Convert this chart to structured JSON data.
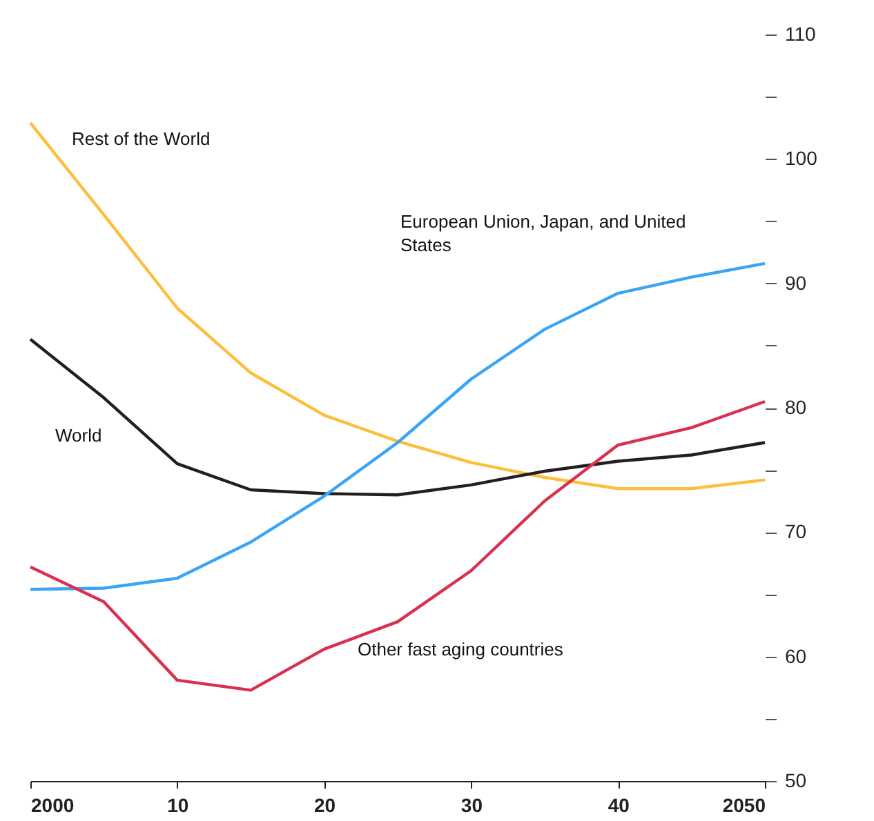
{
  "chart_data": {
    "type": "line",
    "x": [
      2000,
      2005,
      2010,
      2015,
      2020,
      2025,
      2030,
      2035,
      2040,
      2045,
      2050
    ],
    "series": [
      {
        "name": "Rest of the World",
        "color": "#fbbf3c",
        "values": [
          102.9,
          95.5,
          88.0,
          82.8,
          79.4,
          77.3,
          75.6,
          74.4,
          73.5,
          73.5,
          74.2
        ]
      },
      {
        "name": "World",
        "color": "#231f20",
        "values": [
          85.5,
          80.8,
          75.5,
          73.4,
          73.1,
          73.0,
          73.8,
          74.9,
          75.7,
          76.2,
          77.2
        ]
      },
      {
        "name": "European Union, Japan, and United States",
        "color": "#3aa5f5",
        "values": [
          65.4,
          65.5,
          66.3,
          69.2,
          72.9,
          77.2,
          82.3,
          86.3,
          89.2,
          90.5,
          91.6
        ]
      },
      {
        "name": "Other fast aging countries",
        "color": "#d9304f",
        "values": [
          67.2,
          64.4,
          58.1,
          57.3,
          60.6,
          62.8,
          66.9,
          72.5,
          77.0,
          78.4,
          80.5
        ]
      }
    ],
    "xlim": [
      2000,
      2050
    ],
    "xticks": [
      2000,
      {
        "value": 2010,
        "label": "10"
      },
      {
        "value": 2020,
        "label": "20"
      },
      {
        "value": 2030,
        "label": "30"
      },
      {
        "value": 2040,
        "label": "40"
      },
      2050
    ],
    "ylim": [
      50,
      110
    ],
    "yticks": [
      50,
      {
        "value": 55,
        "label": null
      },
      60,
      {
        "value": 65,
        "label": null
      },
      70,
      {
        "value": 75,
        "label": null
      },
      80,
      {
        "value": 85,
        "label": null
      },
      90,
      {
        "value": 95,
        "label": null
      },
      100,
      {
        "value": 105,
        "label": null
      },
      110
    ],
    "grid": false,
    "legend": false,
    "marker": "none",
    "line_style": "solid"
  }
}
